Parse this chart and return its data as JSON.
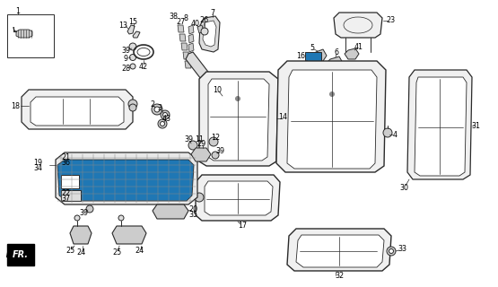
{
  "bg_color": "#ffffff",
  "line_color": "#2a2a2a",
  "label_color": "#000000",
  "font_size": 5.8,
  "fig_width": 5.55,
  "fig_height": 3.2,
  "dpi": 100
}
